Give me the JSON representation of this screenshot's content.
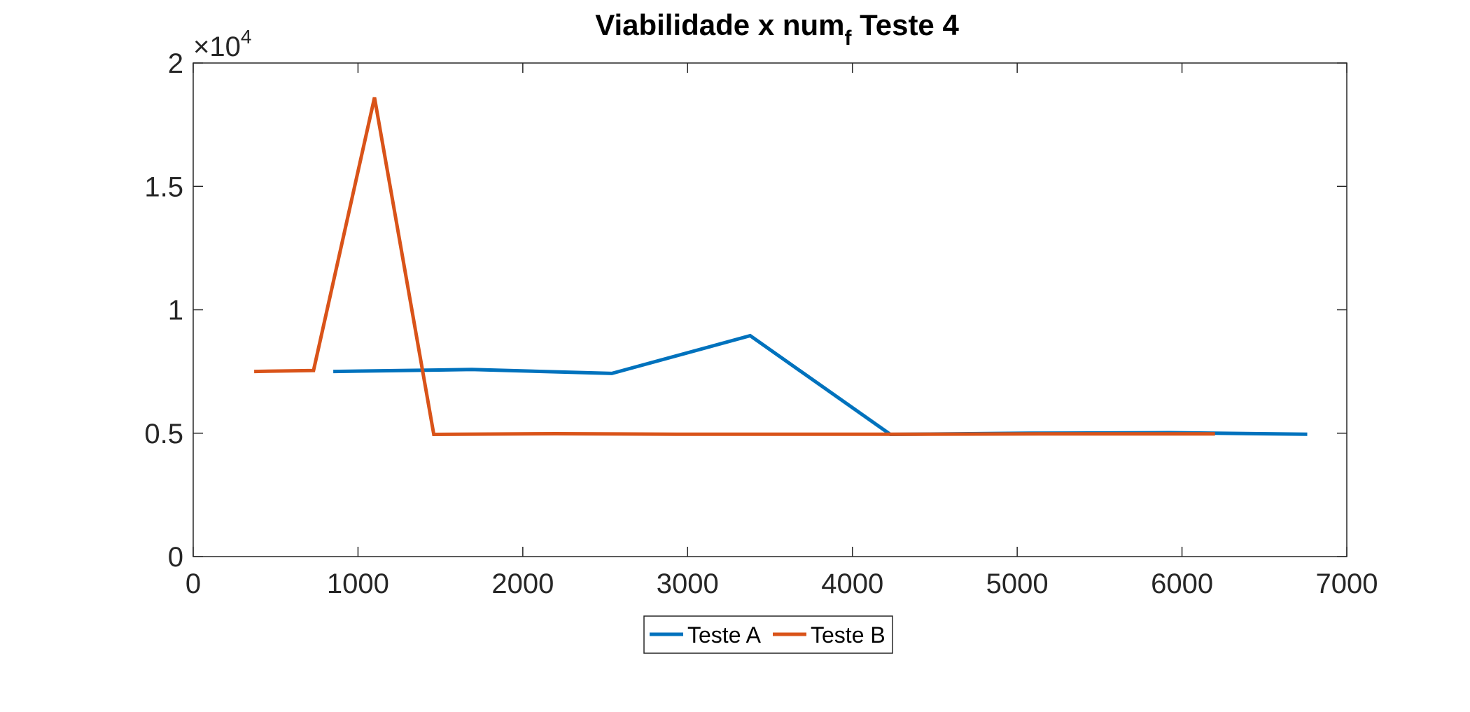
{
  "chart_data": {
    "type": "line",
    "title": {
      "main": "Viabilidade x num",
      "subscript": "f",
      "suffix": " Teste 4"
    },
    "xlabel": "",
    "ylabel": "",
    "xlim": [
      0,
      7000
    ],
    "ylim": [
      0,
      20000
    ],
    "x_ticks": [
      0,
      1000,
      2000,
      3000,
      4000,
      5000,
      6000,
      7000
    ],
    "x_tick_labels": [
      "0",
      "1000",
      "2000",
      "3000",
      "4000",
      "5000",
      "6000",
      "7000"
    ],
    "y_ticks": [
      0,
      5000,
      10000,
      15000,
      20000
    ],
    "y_tick_labels": [
      "0",
      "0.5",
      "1",
      "1.5",
      "2"
    ],
    "y_exponent": {
      "base": "×10",
      "power": "4"
    },
    "grid": false,
    "legend_position": "bottom-center",
    "legend_orientation": "horizontal",
    "series": [
      {
        "name": "Teste A",
        "color": "#0072BD",
        "x": [
          850,
          1690,
          2540,
          3380,
          4230,
          5070,
          5920,
          6760
        ],
        "y": [
          7500,
          7580,
          7420,
          8950,
          4950,
          5000,
          5020,
          4960
        ]
      },
      {
        "name": "Teste B",
        "color": "#D95319",
        "x": [
          370,
          730,
          1100,
          1460,
          2200,
          2930,
          3660,
          4390,
          5130,
          6200
        ],
        "y": [
          7500,
          7540,
          18600,
          4950,
          4980,
          4960,
          4960,
          4960,
          4970,
          4970
        ]
      }
    ]
  }
}
